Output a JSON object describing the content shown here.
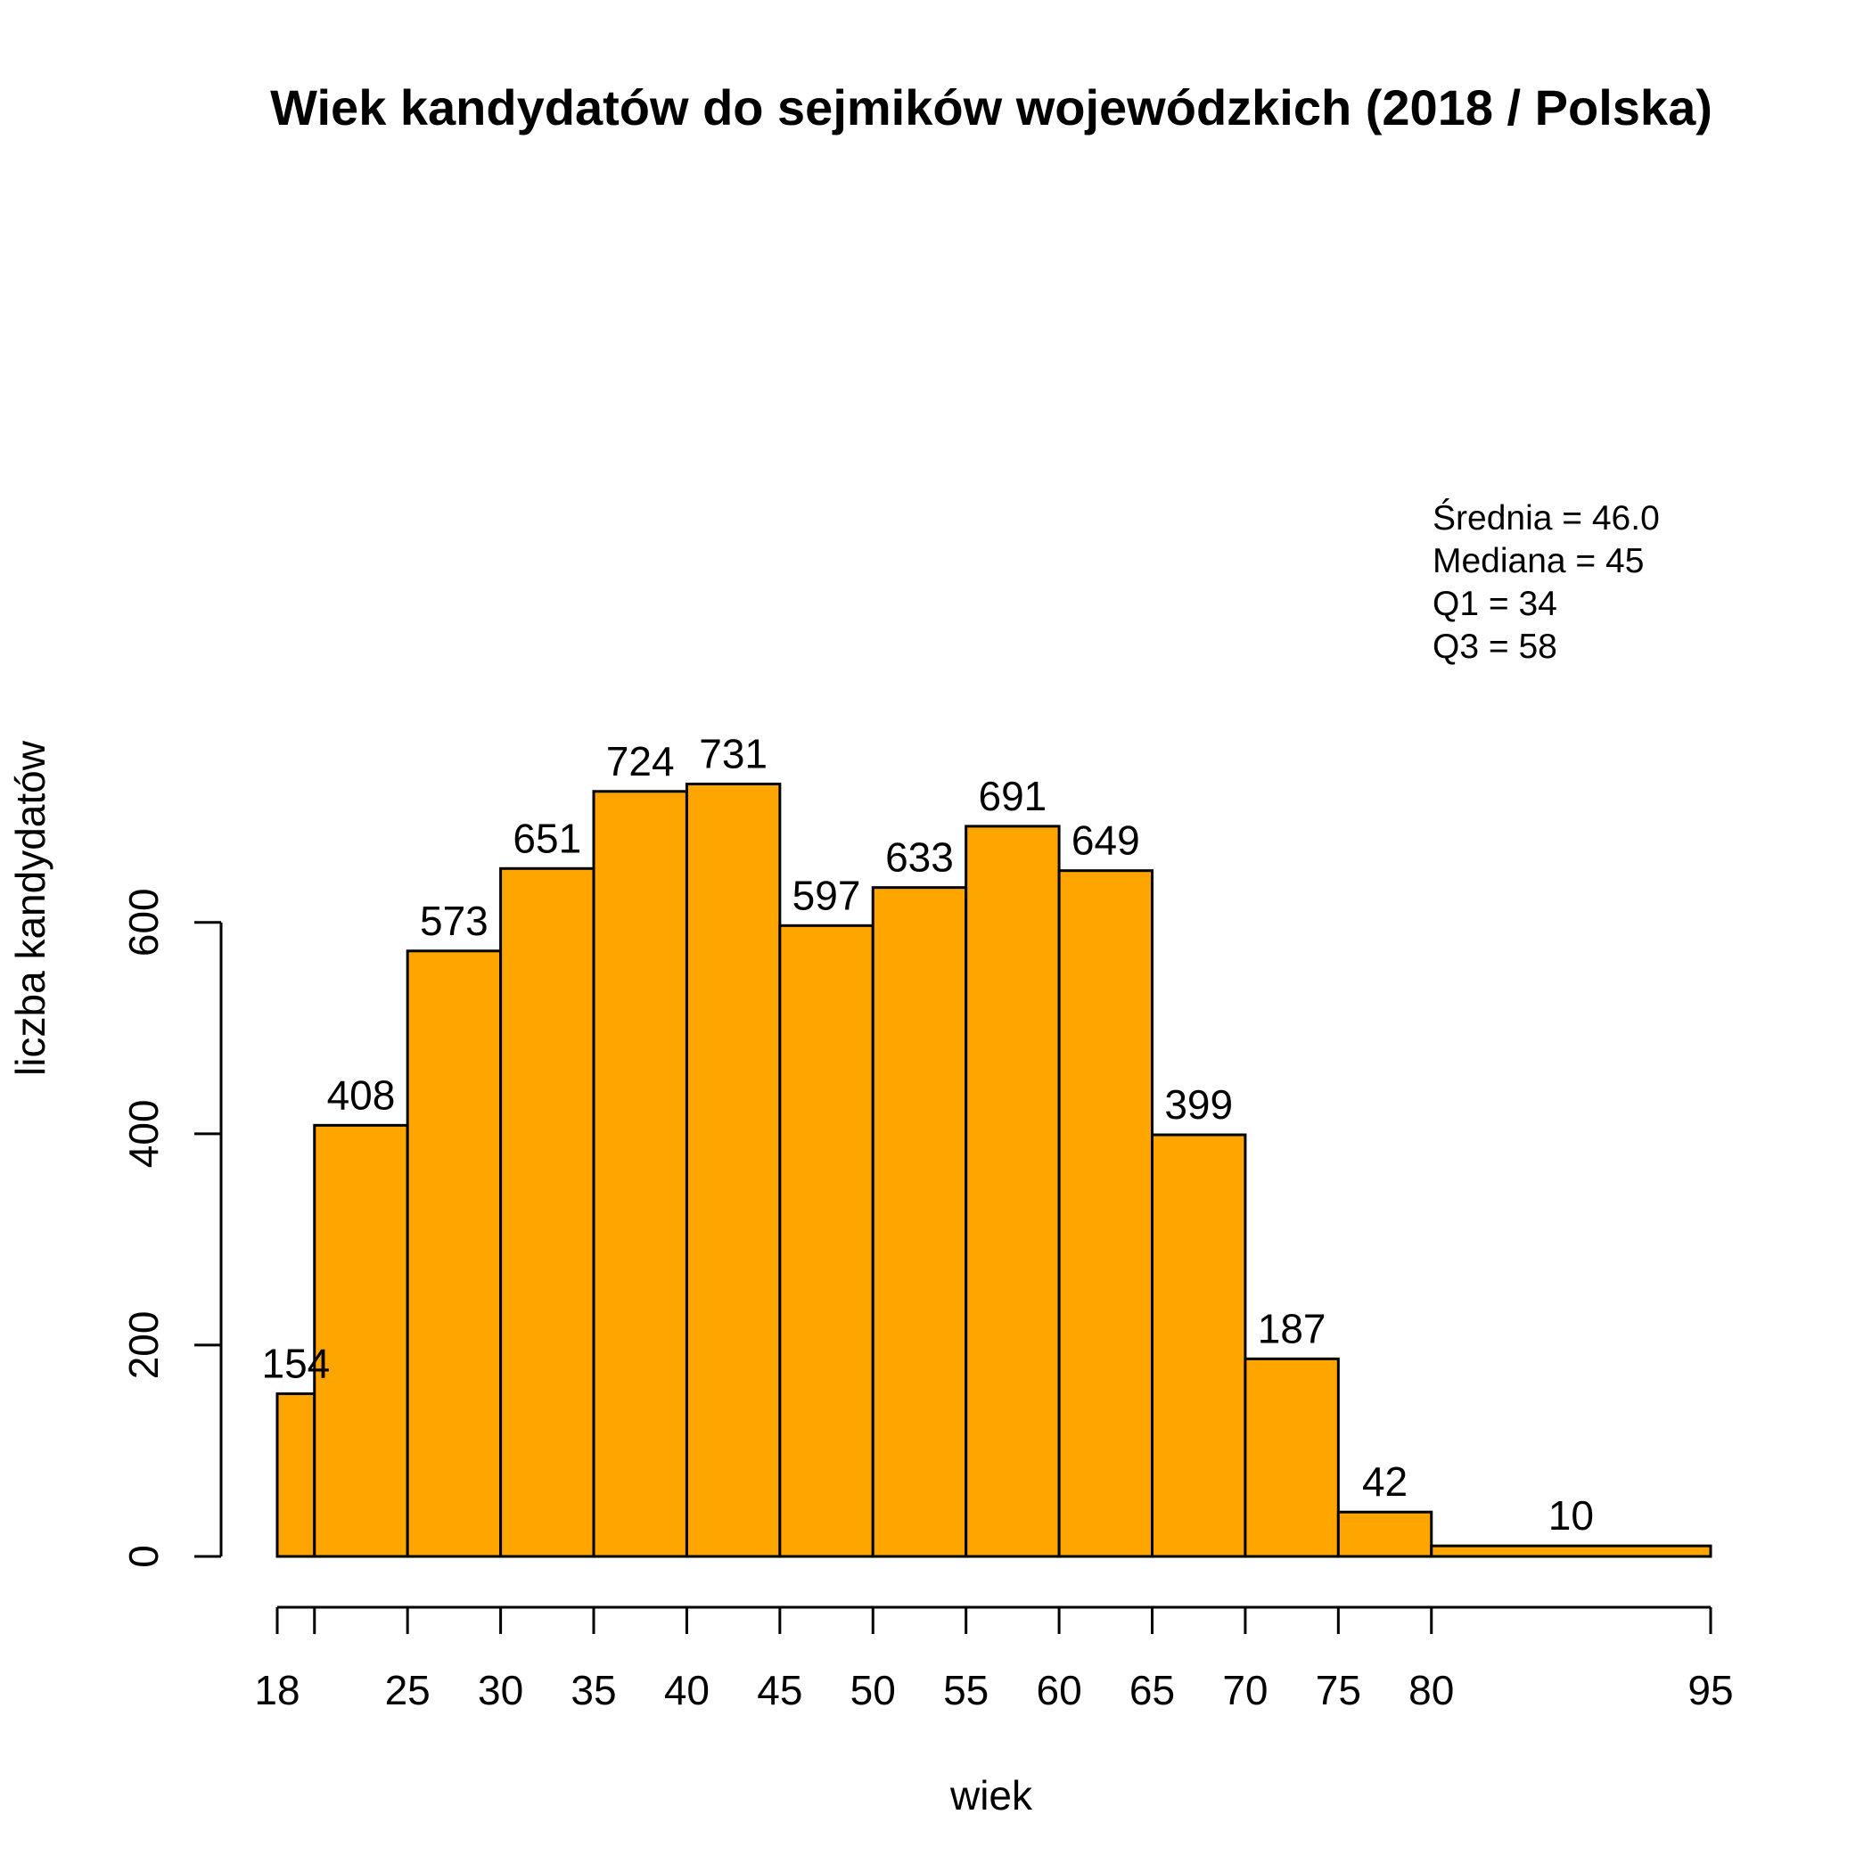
{
  "chart_data": {
    "type": "bar",
    "title": "Wiek kandydatów do sejmików wojewódzkich (2018 / Polska)",
    "xlabel": "wiek",
    "ylabel": "liczba kandydatów",
    "bin_edges": [
      18,
      20,
      25,
      30,
      35,
      40,
      45,
      50,
      55,
      60,
      65,
      70,
      75,
      80,
      95
    ],
    "values": [
      154,
      408,
      573,
      651,
      724,
      731,
      597,
      633,
      691,
      649,
      399,
      187,
      42,
      10
    ],
    "x_ticks": [
      {
        "value": 18,
        "label": "18"
      },
      {
        "value": 20,
        "label": ""
      },
      {
        "value": 25,
        "label": "25"
      },
      {
        "value": 30,
        "label": "30"
      },
      {
        "value": 35,
        "label": "35"
      },
      {
        "value": 40,
        "label": "40"
      },
      {
        "value": 45,
        "label": "45"
      },
      {
        "value": 50,
        "label": "50"
      },
      {
        "value": 55,
        "label": "55"
      },
      {
        "value": 60,
        "label": "60"
      },
      {
        "value": 65,
        "label": "65"
      },
      {
        "value": 70,
        "label": "70"
      },
      {
        "value": 75,
        "label": "75"
      },
      {
        "value": 80,
        "label": "80"
      },
      {
        "value": 95,
        "label": "95"
      }
    ],
    "y_ticks": [
      {
        "value": 0,
        "label": "0"
      },
      {
        "value": 200,
        "label": "200"
      },
      {
        "value": 400,
        "label": "400"
      },
      {
        "value": 600,
        "label": "600"
      }
    ],
    "xlim": [
      18,
      95
    ],
    "ylim": [
      0,
      731
    ],
    "bar_color": "#FFA500",
    "grid": false,
    "stats": {
      "mean": "Średnia = 46.0",
      "median": "Mediana = 45",
      "q1": "Q1 = 34",
      "q3": "Q3 = 58"
    }
  }
}
